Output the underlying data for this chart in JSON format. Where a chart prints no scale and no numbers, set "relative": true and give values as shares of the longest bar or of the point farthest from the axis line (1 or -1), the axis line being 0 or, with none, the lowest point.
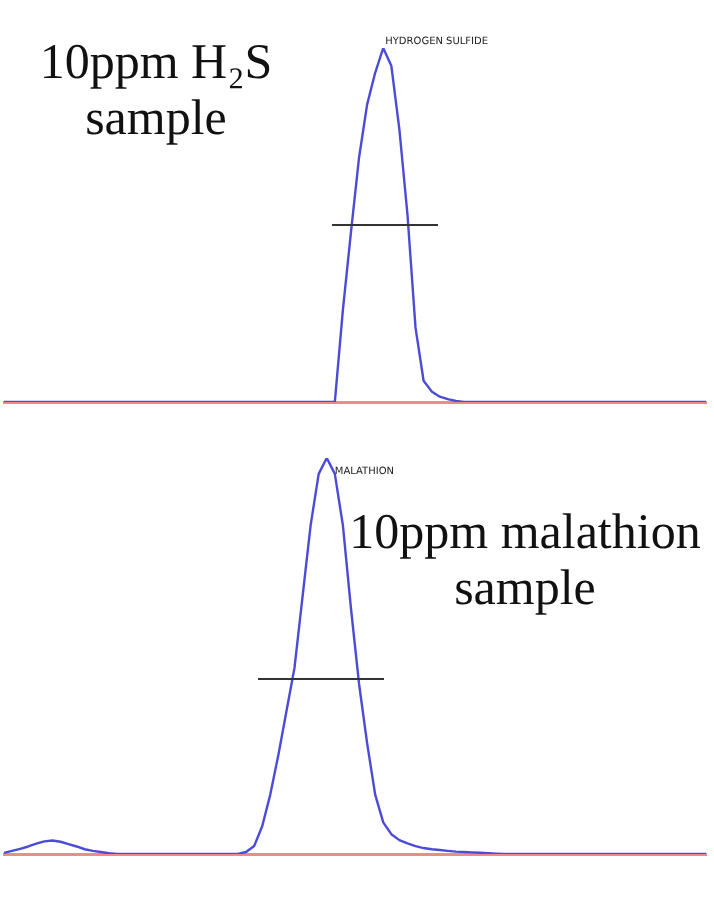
{
  "chart_data": [
    {
      "type": "line",
      "relative": true,
      "title": "10ppm H₂S sample",
      "annotations": [
        "HYDROGEN SULFIDE"
      ],
      "categories": [
        null,
        null,
        null,
        null,
        null,
        null,
        null,
        null,
        null,
        null,
        null,
        null,
        null,
        null,
        null,
        null,
        null,
        null,
        null,
        null,
        null,
        null,
        null,
        null,
        null,
        null,
        null,
        null,
        null,
        null,
        null,
        null,
        null,
        null,
        null,
        null,
        null,
        null,
        null,
        null,
        null,
        null,
        null,
        null,
        null,
        null,
        null,
        null,
        null,
        null,
        null,
        null,
        null,
        null,
        null,
        null,
        null,
        null,
        null,
        null,
        null,
        null,
        null,
        null,
        null,
        null,
        null,
        null,
        null,
        null,
        null,
        null,
        null,
        null,
        null,
        null,
        null,
        null,
        null,
        null,
        null,
        null,
        null,
        null,
        null,
        null,
        null,
        null
      ],
      "series": [
        {
          "color": "#4b4bd8",
          "values": [
            0,
            0,
            0,
            0,
            0,
            0,
            0,
            0,
            0,
            0,
            0,
            0,
            0,
            0,
            0,
            0,
            0,
            0,
            0,
            0,
            0,
            0,
            0,
            0,
            0,
            0,
            0,
            0,
            0,
            0,
            0,
            0,
            0,
            0,
            0,
            0,
            0,
            0,
            0,
            0,
            0,
            0,
            0.26,
            0.48,
            0.69,
            0.84,
            0.93,
            1,
            0.95,
            0.77,
            0.53,
            0.21,
            0.06,
            0.03,
            0.015,
            0.008,
            0.003,
            0,
            0,
            0,
            0,
            0,
            0,
            0,
            0,
            0,
            0,
            0,
            0,
            0,
            0,
            0,
            0,
            0,
            0,
            0,
            0,
            0,
            0,
            0,
            0,
            0,
            0,
            0,
            0,
            0,
            0,
            0
          ]
        }
      ]
    },
    {
      "type": "line",
      "relative": true,
      "title": "10ppm malathion sample",
      "annotations": [
        "MALATHION"
      ],
      "categories": [
        null,
        null,
        null,
        null,
        null,
        null,
        null,
        null,
        null,
        null,
        null,
        null,
        null,
        null,
        null,
        null,
        null,
        null,
        null,
        null,
        null,
        null,
        null,
        null,
        null,
        null,
        null,
        null,
        null,
        null,
        null,
        null,
        null,
        null,
        null,
        null,
        null,
        null,
        null,
        null,
        null,
        null,
        null,
        null,
        null,
        null,
        null,
        null,
        null,
        null,
        null,
        null,
        null,
        null,
        null,
        null,
        null,
        null,
        null,
        null,
        null,
        null,
        null,
        null,
        null,
        null,
        null,
        null,
        null,
        null,
        null,
        null,
        null,
        null,
        null,
        null,
        null,
        null,
        null,
        null,
        null,
        null,
        null,
        null,
        null,
        null,
        null,
        null
      ],
      "series": [
        {
          "color": "#4b4bd8",
          "values": [
            0.003,
            0.008,
            0.013,
            0.019,
            0.026,
            0.032,
            0.034,
            0.031,
            0.025,
            0.019,
            0.012,
            0.008,
            0.005,
            0.002,
            0,
            0,
            0,
            0,
            0,
            0,
            0,
            0,
            0,
            0,
            0,
            0,
            0,
            0,
            0,
            0,
            0.005,
            0.02,
            0.07,
            0.15,
            0.25,
            0.36,
            0.47,
            0.65,
            0.83,
            0.96,
            1,
            0.96,
            0.83,
            0.62,
            0.43,
            0.28,
            0.15,
            0.08,
            0.05,
            0.035,
            0.027,
            0.02,
            0.015,
            0.012,
            0.01,
            0.008,
            0.006,
            0.005,
            0.004,
            0.003,
            0.002,
            0.001,
            0,
            0,
            0,
            0,
            0,
            0,
            0,
            0,
            0,
            0,
            0,
            0,
            0,
            0,
            0,
            0,
            0,
            0,
            0,
            0,
            0,
            0,
            0,
            0,
            0,
            0
          ]
        }
      ]
    }
  ]
}
